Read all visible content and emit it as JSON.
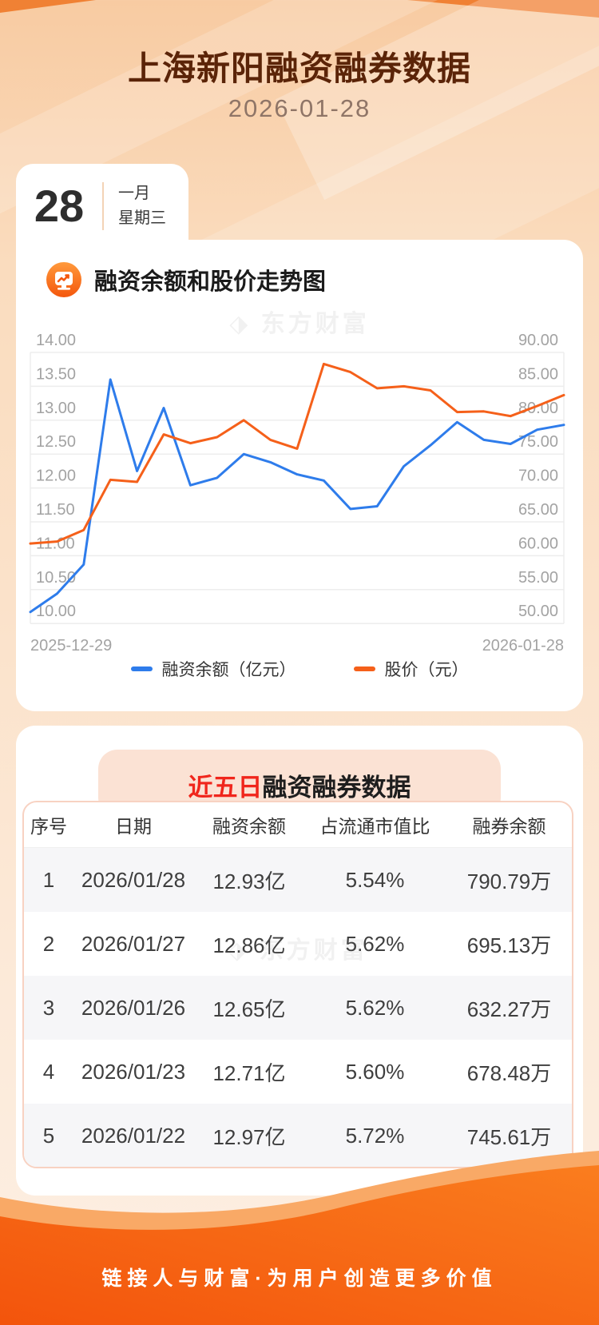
{
  "header": {
    "title": "上海新阳融资融券数据",
    "date": "2026-01-28"
  },
  "calendar": {
    "day": "28",
    "month": "一月",
    "weekday": "星期三"
  },
  "chart_section": {
    "title": "融资余额和股价走势图",
    "watermark": "东方财富"
  },
  "chart_data": {
    "type": "line",
    "x_start_label": "2025-12-29",
    "x_end_label": "2026-01-28",
    "grid": true,
    "legend_position": "bottom",
    "left_axis": {
      "min": 10,
      "max": 14,
      "ticks": [
        "14.00",
        "13.50",
        "13.00",
        "12.50",
        "12.00",
        "11.50",
        "11.00",
        "10.50",
        "10.00"
      ]
    },
    "right_axis": {
      "min": 50,
      "max": 90,
      "ticks": [
        "90.00",
        "85.00",
        "80.00",
        "75.00",
        "70.00",
        "65.00",
        "60.00",
        "55.00",
        "50.00"
      ]
    },
    "series": [
      {
        "name": "融资余额（亿元）",
        "axis": "left",
        "color": "#2E7CEB",
        "values": [
          10.17,
          10.44,
          10.87,
          13.6,
          12.25,
          13.18,
          12.04,
          12.15,
          12.5,
          12.38,
          12.2,
          12.11,
          11.69,
          11.73,
          12.32,
          12.63,
          12.97,
          12.71,
          12.65,
          12.86,
          12.93
        ]
      },
      {
        "name": "股价（元）",
        "axis": "right",
        "color": "#F5601A",
        "values": [
          61.8,
          62.1,
          63.8,
          71.2,
          70.9,
          77.9,
          76.6,
          77.5,
          80.0,
          77.1,
          75.8,
          88.3,
          87.1,
          84.7,
          85.0,
          84.4,
          81.2,
          81.3,
          80.6,
          82.1,
          83.7
        ]
      }
    ]
  },
  "table_section": {
    "title_highlight": "近五日",
    "title_rest": "融资融券数据",
    "watermark": "东方财富",
    "columns": [
      "序号",
      "日期",
      "融资余额",
      "占流通市值比",
      "融券余额"
    ],
    "rows": [
      [
        "1",
        "2026/01/28",
        "12.93亿",
        "5.54%",
        "790.79万"
      ],
      [
        "2",
        "2026/01/27",
        "12.86亿",
        "5.62%",
        "695.13万"
      ],
      [
        "3",
        "2026/01/26",
        "12.65亿",
        "5.62%",
        "632.27万"
      ],
      [
        "4",
        "2026/01/23",
        "12.71亿",
        "5.60%",
        "678.48万"
      ],
      [
        "5",
        "2026/01/22",
        "12.97亿",
        "5.72%",
        "745.61万"
      ]
    ]
  },
  "footer": {
    "slogan": "链接人与财富·为用户创造更多价值"
  }
}
